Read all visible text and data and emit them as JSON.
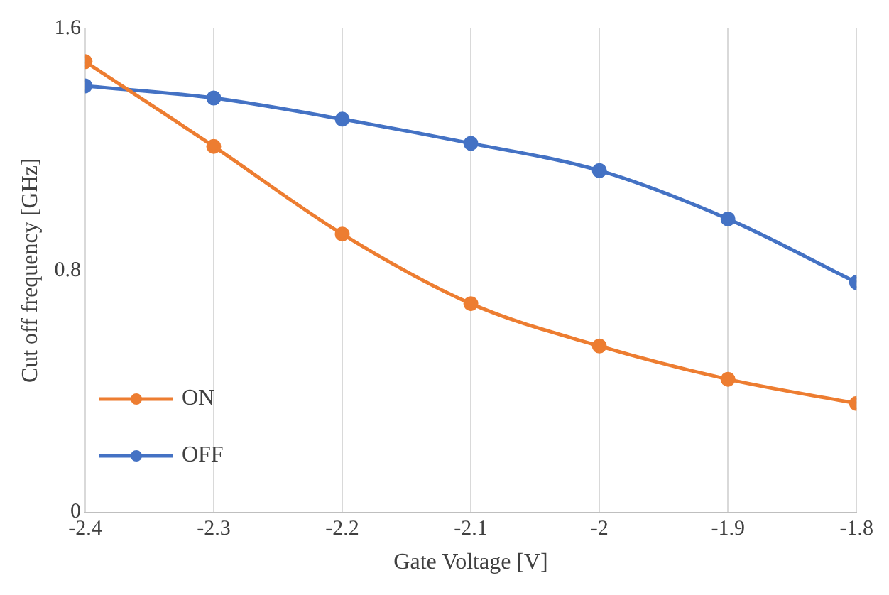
{
  "chart_data": {
    "type": "line",
    "xlabel": "Gate Voltage [V]",
    "ylabel": "Cut off frequency [GHz]",
    "x": [
      -2.4,
      -2.3,
      -2.2,
      -2.1,
      -2,
      -1.9,
      -1.8
    ],
    "series": [
      {
        "name": "ON",
        "color": "#ed7d31",
        "values": [
          1.49,
          1.21,
          0.92,
          0.69,
          0.55,
          0.44,
          0.36
        ]
      },
      {
        "name": "OFF",
        "color": "#4472c4",
        "values": [
          1.41,
          1.37,
          1.3,
          1.22,
          1.13,
          0.97,
          0.76
        ]
      }
    ],
    "xlim": [
      -2.4,
      -1.8
    ],
    "xticks": [
      -2.4,
      -2.3,
      -2.2,
      -2.1,
      -2,
      -1.9,
      -1.8
    ],
    "ylim": [
      0,
      1.6
    ],
    "yticks": [
      0,
      0.8,
      1.6
    ],
    "grid": "x",
    "legend": "bottom left",
    "marker": "circle",
    "line_style": "solid"
  }
}
